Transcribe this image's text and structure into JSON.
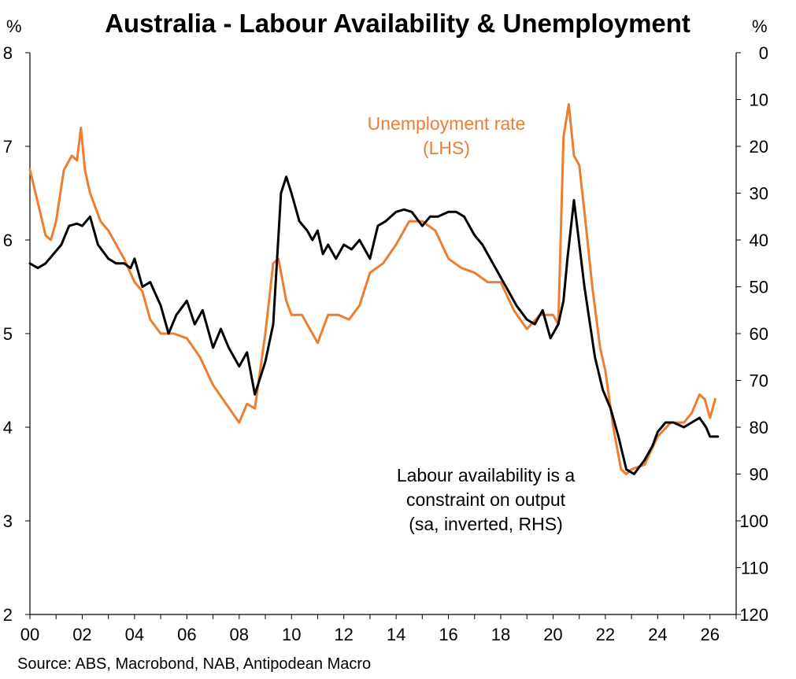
{
  "chart_data": {
    "type": "line",
    "title": "Australia - Labour Availability & Unemployment",
    "left_unit": "%",
    "right_unit": "%",
    "y_left": {
      "min": 2,
      "max": 8,
      "ticks": [
        "2",
        "3",
        "4",
        "5",
        "6",
        "7",
        "8"
      ]
    },
    "y_right": {
      "min": 0,
      "max": 120,
      "inverted": true,
      "ticks": [
        "0",
        "10",
        "20",
        "30",
        "40",
        "50",
        "60",
        "70",
        "80",
        "90",
        "100",
        "110",
        "120"
      ]
    },
    "x_axis": {
      "min": 2000,
      "max": 2027,
      "ticks": [
        "00",
        "02",
        "04",
        "06",
        "08",
        "10",
        "12",
        "14",
        "16",
        "18",
        "20",
        "22",
        "24",
        "26"
      ]
    },
    "grid": false,
    "colors": {
      "unemployment": "#ED7D31",
      "labour": "#000000"
    },
    "annotations": {
      "unemployment": [
        "Unemployment rate",
        "(LHS)"
      ],
      "labour": [
        "Labour availability is a",
        "constraint on output",
        "(sa, inverted, RHS)"
      ]
    },
    "source": "Source: ABS, Macrobond, NAB, Antipodean Macro",
    "series": [
      {
        "name": "Unemployment rate (LHS)",
        "axis": "left",
        "x": [
          2000.0,
          2000.3,
          2000.6,
          2000.8,
          2001.0,
          2001.3,
          2001.6,
          2001.8,
          2001.95,
          2002.1,
          2002.3,
          2002.5,
          2002.7,
          2003.0,
          2003.3,
          2003.6,
          2004.0,
          2004.3,
          2004.6,
          2005.0,
          2005.5,
          2006.0,
          2006.5,
          2007.0,
          2007.5,
          2008.0,
          2008.3,
          2008.6,
          2009.0,
          2009.3,
          2009.5,
          2009.8,
          2010.0,
          2010.4,
          2010.8,
          2011.0,
          2011.4,
          2011.8,
          2012.2,
          2012.6,
          2013.0,
          2013.5,
          2014.0,
          2014.5,
          2015.0,
          2015.5,
          2016.0,
          2016.5,
          2017.0,
          2017.5,
          2018.0,
          2018.5,
          2019.0,
          2019.5,
          2020.0,
          2020.2,
          2020.4,
          2020.6,
          2020.8,
          2021.0,
          2021.2,
          2021.5,
          2021.8,
          2022.0,
          2022.3,
          2022.6,
          2022.8,
          2023.0,
          2023.5,
          2024.0,
          2024.5,
          2025.0,
          2025.3,
          2025.6,
          2025.8,
          2026.0,
          2026.2
        ],
        "y": [
          6.75,
          6.4,
          6.05,
          6.0,
          6.2,
          6.75,
          6.9,
          6.85,
          7.2,
          6.75,
          6.5,
          6.35,
          6.2,
          6.1,
          5.95,
          5.8,
          5.55,
          5.45,
          5.15,
          5.0,
          5.0,
          4.95,
          4.75,
          4.45,
          4.25,
          4.05,
          4.25,
          4.2,
          5.0,
          5.75,
          5.8,
          5.35,
          5.2,
          5.2,
          5.0,
          4.9,
          5.2,
          5.2,
          5.15,
          5.3,
          5.65,
          5.75,
          5.95,
          6.2,
          6.2,
          6.1,
          5.8,
          5.7,
          5.65,
          5.55,
          5.55,
          5.25,
          5.05,
          5.2,
          5.2,
          5.1,
          7.1,
          7.45,
          6.9,
          6.8,
          6.3,
          5.5,
          4.85,
          4.6,
          4.0,
          3.55,
          3.5,
          3.55,
          3.6,
          3.9,
          4.05,
          4.05,
          4.15,
          4.35,
          4.3,
          4.1,
          4.3
        ]
      },
      {
        "name": "Labour availability (sa, inverted, RHS)",
        "axis": "right",
        "x": [
          2000.0,
          2000.3,
          2000.6,
          2000.9,
          2001.2,
          2001.5,
          2001.8,
          2002.0,
          2002.3,
          2002.6,
          2003.0,
          2003.3,
          2003.6,
          2003.85,
          2004.0,
          2004.3,
          2004.6,
          2005.0,
          2005.3,
          2005.6,
          2006.0,
          2006.3,
          2006.6,
          2007.0,
          2007.3,
          2007.6,
          2008.0,
          2008.3,
          2008.6,
          2009.0,
          2009.3,
          2009.6,
          2009.8,
          2010.0,
          2010.3,
          2010.6,
          2010.8,
          2011.0,
          2011.2,
          2011.4,
          2011.7,
          2012.0,
          2012.3,
          2012.6,
          2013.0,
          2013.3,
          2013.6,
          2014.0,
          2014.3,
          2014.6,
          2015.0,
          2015.3,
          2015.6,
          2016.0,
          2016.3,
          2016.6,
          2017.0,
          2017.3,
          2017.6,
          2018.0,
          2018.3,
          2018.6,
          2019.0,
          2019.3,
          2019.6,
          2019.9,
          2020.2,
          2020.4,
          2020.55,
          2020.8,
          2021.2,
          2021.6,
          2021.9,
          2022.2,
          2022.5,
          2022.8,
          2023.1,
          2023.5,
          2023.8,
          2024.0,
          2024.3,
          2024.6,
          2025.0,
          2025.3,
          2025.6,
          2025.85,
          2026.0,
          2026.3
        ],
        "y": [
          45,
          46,
          45,
          43,
          41,
          37,
          36.5,
          37,
          35,
          41,
          44,
          45,
          45,
          46,
          44,
          50,
          49,
          54,
          60,
          56,
          53,
          58,
          55,
          63,
          59,
          63,
          67,
          64,
          73,
          66,
          58,
          30,
          26.5,
          30,
          36,
          38,
          40,
          38,
          43,
          41,
          44,
          41,
          42,
          40,
          44,
          37,
          36,
          34,
          33.5,
          34,
          37,
          35,
          35,
          34,
          34,
          35,
          39,
          41,
          44,
          48,
          51,
          54,
          57,
          58,
          55,
          61,
          58,
          53,
          44,
          31.5,
          50,
          65,
          72,
          76,
          82,
          89,
          90,
          87,
          84,
          81,
          79,
          79,
          80,
          79,
          78,
          80,
          82,
          82
        ]
      }
    ]
  }
}
